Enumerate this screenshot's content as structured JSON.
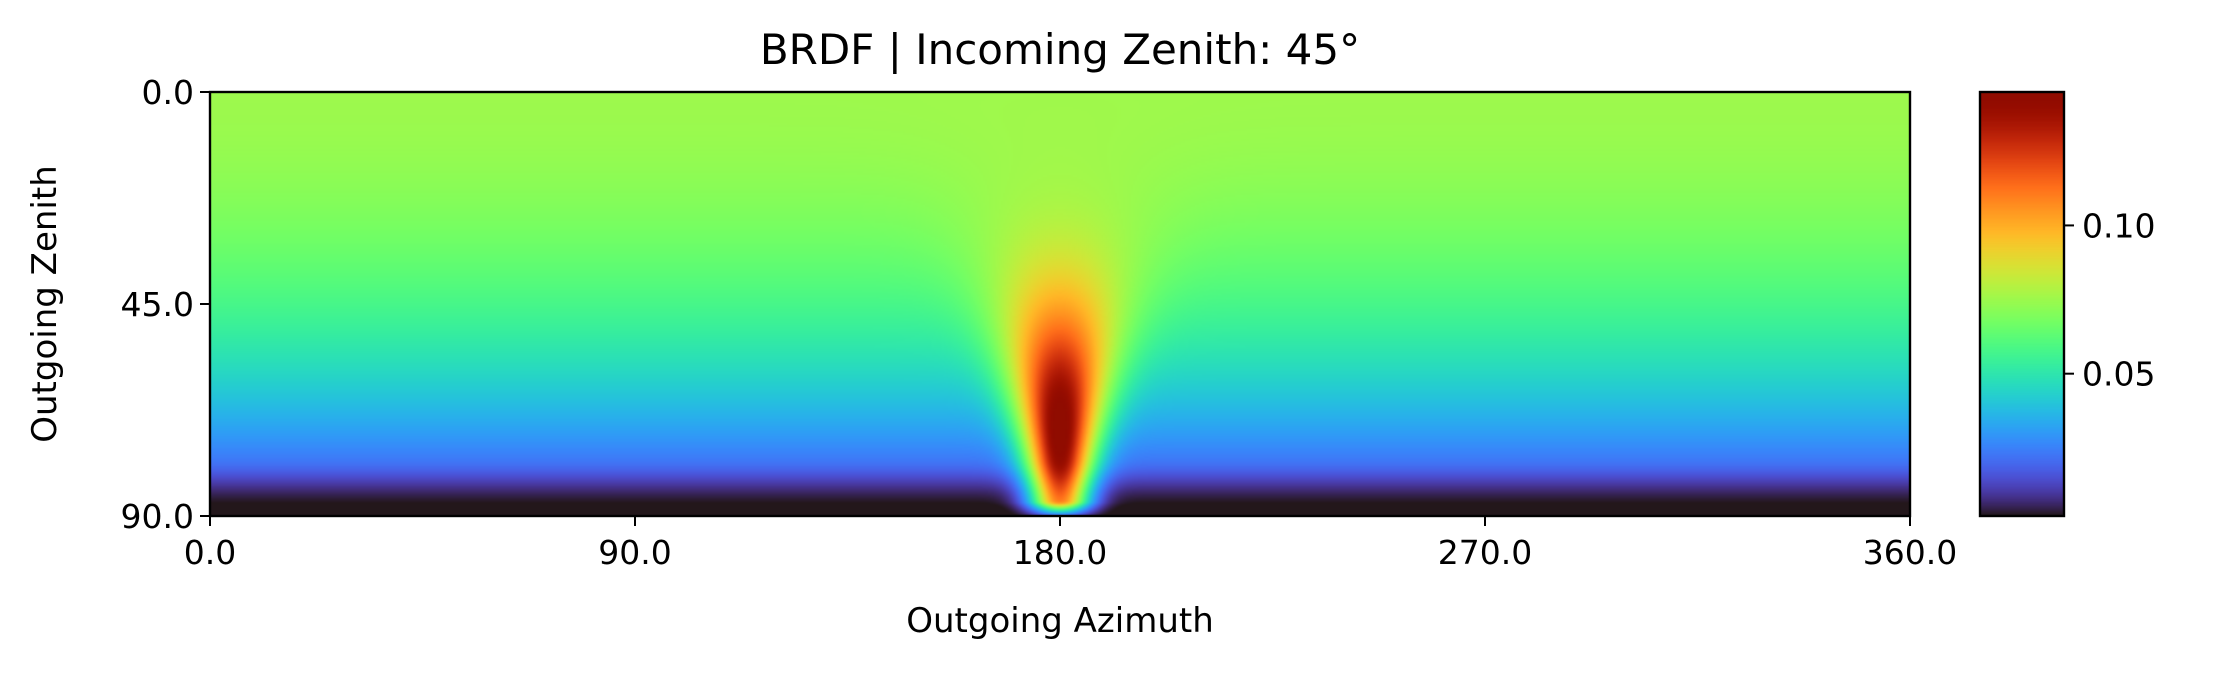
{
  "chart_data": {
    "type": "heatmap",
    "title": "BRDF | Incoming Zenith: 45°",
    "xlabel": "Outgoing Azimuth",
    "ylabel": "Outgoing Zenith",
    "xlim": [
      0,
      360
    ],
    "ylim": [
      0,
      90
    ],
    "y_inverted": true,
    "x_ticks": [
      0,
      90,
      180,
      270,
      360
    ],
    "x_tick_labels": [
      "0.0",
      "90.0",
      "180.0",
      "270.0",
      "360.0"
    ],
    "y_ticks": [
      0,
      45,
      90
    ],
    "y_tick_labels": [
      "0.0",
      "45.0",
      "90.0"
    ],
    "colormap": "turbo",
    "value_range": [
      0.002,
      0.145
    ],
    "colorbar_ticks": [
      0.05,
      0.1
    ],
    "colorbar_tick_labels": [
      "0.05",
      "0.10"
    ],
    "model": {
      "incoming_zenith_deg": 45,
      "lambertian": 0.075,
      "peak_value": 0.145,
      "peak_azimuth": 180,
      "peak_zenith": 77
    },
    "grid": false,
    "legend": "none"
  }
}
